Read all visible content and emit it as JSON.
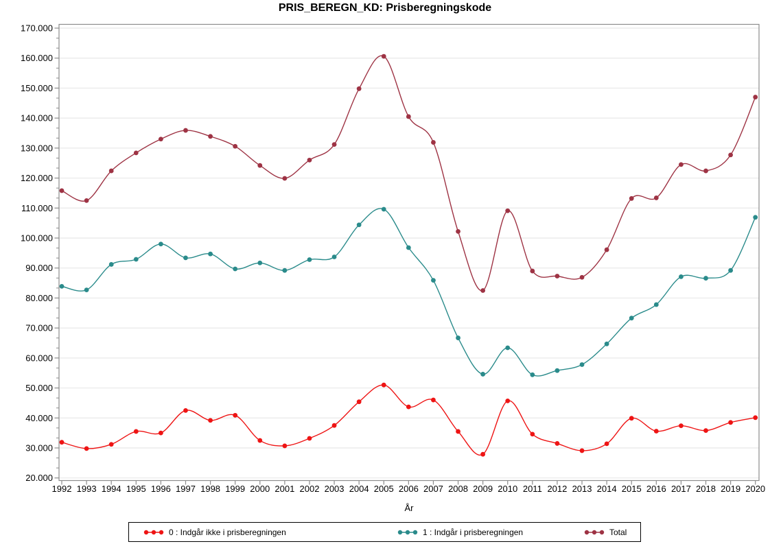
{
  "title": "PRIS_BEREGN_KD: Prisberegningskode",
  "chart_data": {
    "type": "line",
    "title": "PRIS_BEREGN_KD: Prisberegningskode",
    "xlabel": "År",
    "ylabel": "",
    "x": [
      1992,
      1993,
      1994,
      1995,
      1996,
      1997,
      1998,
      1999,
      2000,
      2001,
      2002,
      2003,
      2004,
      2005,
      2006,
      2007,
      2008,
      2009,
      2010,
      2011,
      2012,
      2013,
      2014,
      2015,
      2016,
      2017,
      2018,
      2019,
      2020
    ],
    "series": [
      {
        "name": "0 : Indgår ikke i prisberegningen",
        "color": "#ee1414",
        "values": [
          31900,
          29800,
          31200,
          35500,
          35000,
          42500,
          39200,
          40900,
          32500,
          30700,
          33200,
          37500,
          45400,
          51000,
          43700,
          46000,
          35500,
          27900,
          45700,
          34600,
          31500,
          29100,
          31400,
          39900,
          35600,
          37400,
          35800,
          38500,
          40100
        ]
      },
      {
        "name": "1 : Indgår i prisberegningen",
        "color": "#2a8b8b",
        "values": [
          83900,
          82700,
          91200,
          92900,
          98000,
          93400,
          94700,
          89700,
          91700,
          89200,
          92800,
          93700,
          104400,
          109600,
          96800,
          85900,
          66700,
          54600,
          63400,
          54400,
          55800,
          57800,
          64700,
          73300,
          77800,
          87100,
          86600,
          89200,
          106900
        ]
      },
      {
        "name": "Total",
        "color": "#9e3344",
        "values": [
          115800,
          112500,
          122400,
          128400,
          133000,
          135900,
          133900,
          130600,
          124200,
          119900,
          126000,
          131200,
          149800,
          160600,
          140500,
          131900,
          102200,
          82500,
          109100,
          89000,
          87300,
          86900,
          96100,
          113200,
          113400,
          124500,
          122400,
          127700,
          147000
        ]
      }
    ],
    "ylim": [
      20000,
      170000
    ],
    "ytick_interval": 10000,
    "y_tick_labels": [
      "20.000",
      "30.000",
      "40.000",
      "50.000",
      "60.000",
      "70.000",
      "80.000",
      "90.000",
      "100.000",
      "110.000",
      "120.000",
      "130.000",
      "140.000",
      "150.000",
      "160.000",
      "170.000"
    ],
    "grid": true,
    "legend_position": "bottom",
    "line_interpolation": "spline",
    "marker": "circle"
  },
  "style_colors": {
    "gridline": "#e8e8e8",
    "frame": "#8c8c8c",
    "tick": "#8c8c8c",
    "text": "#000000",
    "background": "#ffffff"
  }
}
